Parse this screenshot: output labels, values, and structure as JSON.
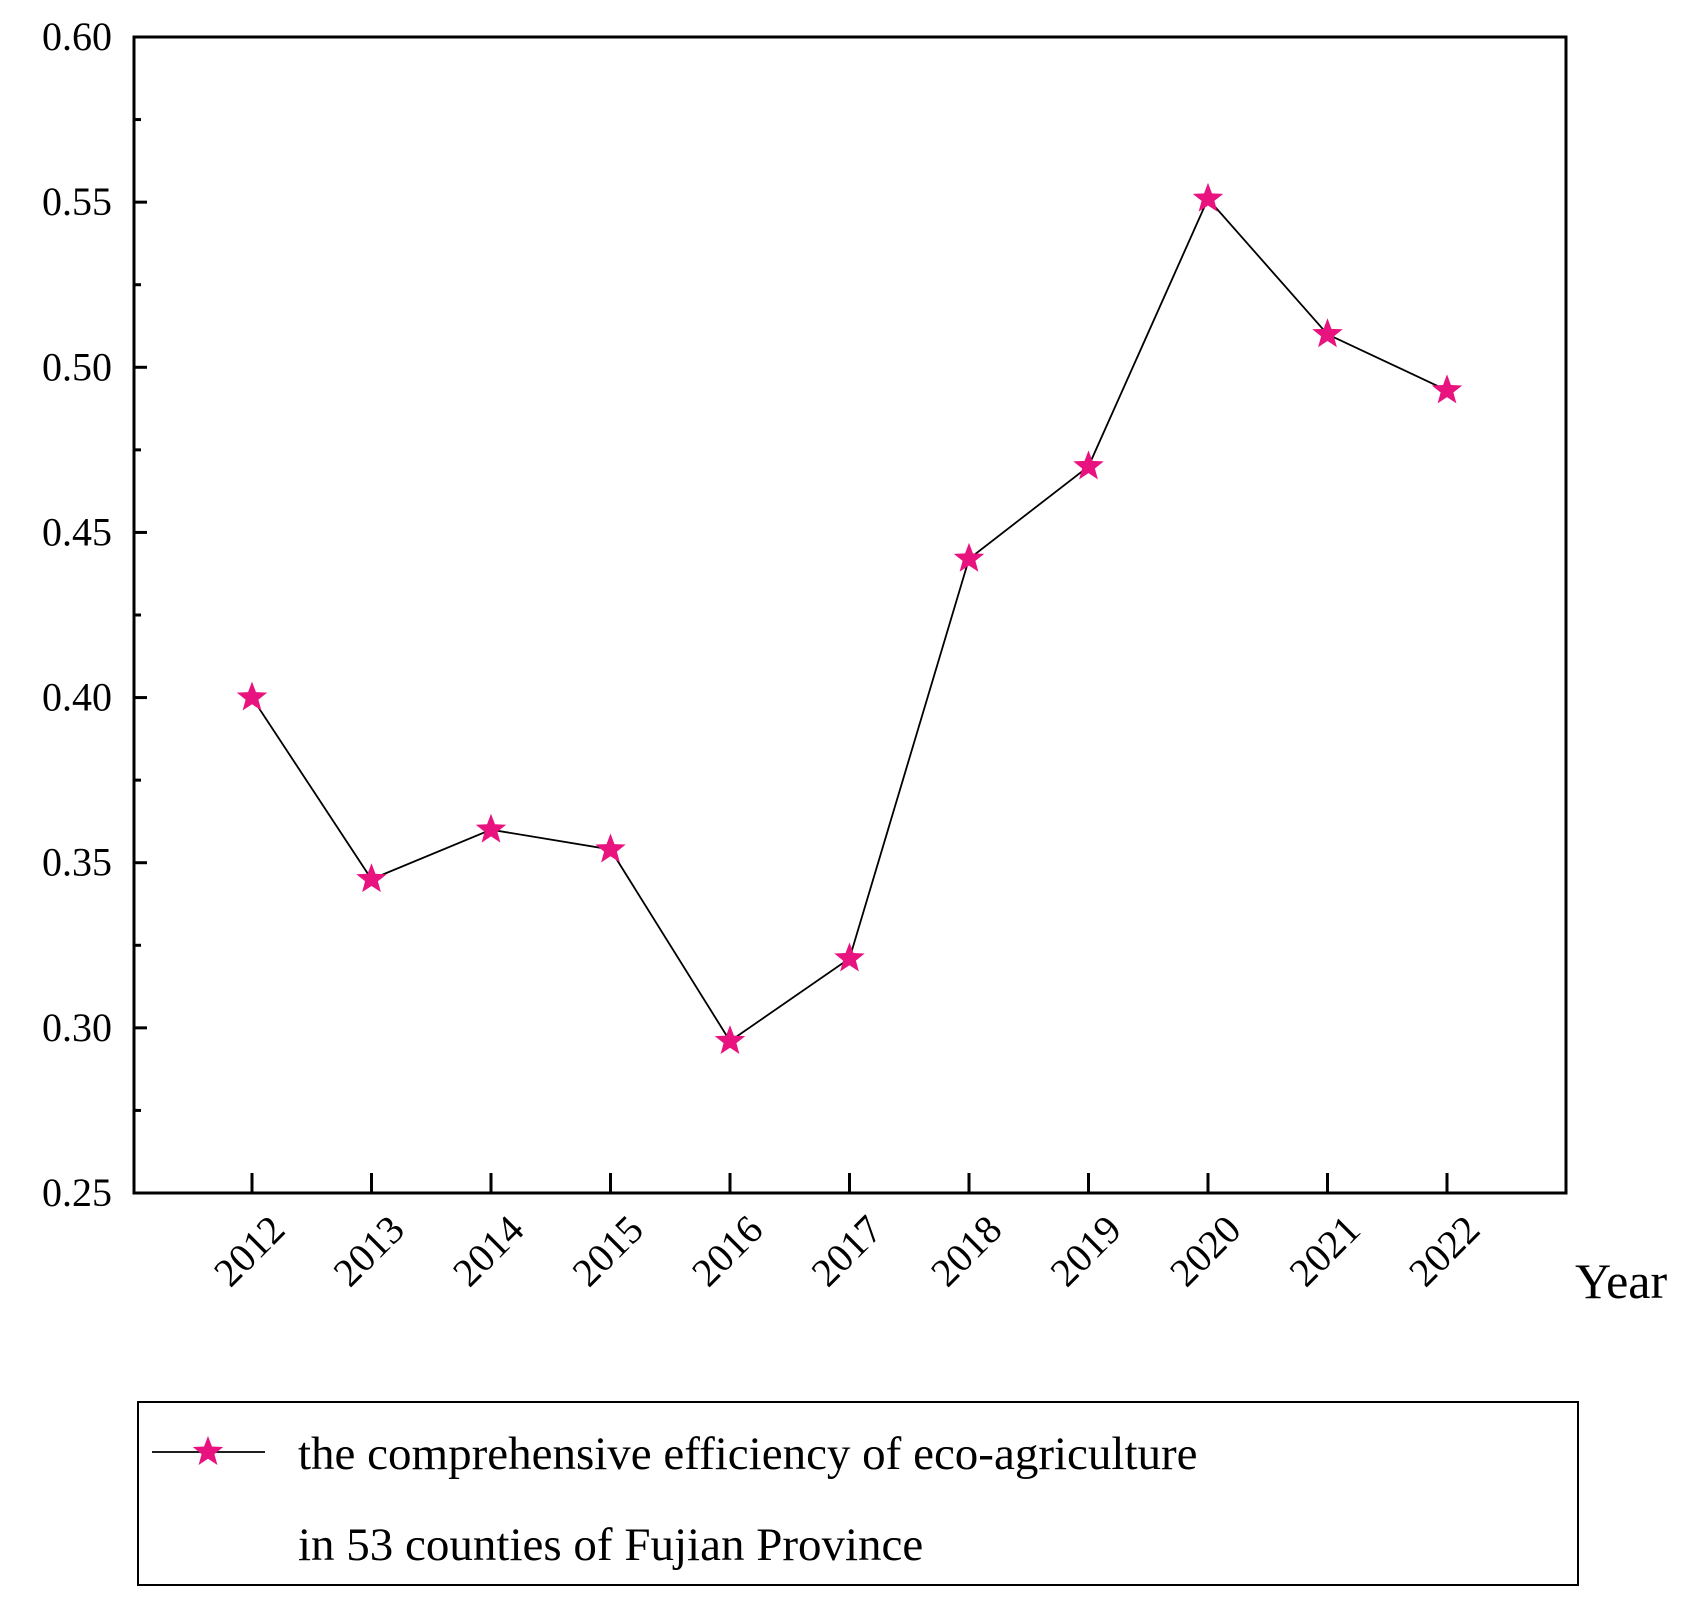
{
  "chart_data": {
    "type": "line",
    "title": "",
    "xlabel": "Year",
    "ylabel": "",
    "categories": [
      "2012",
      "2013",
      "2014",
      "2015",
      "2016",
      "2017",
      "2018",
      "2019",
      "2020",
      "2021",
      "2022"
    ],
    "series": [
      {
        "name": "the comprehensive efficiency of eco-agriculture in 53 counties of Fujian Province",
        "values": [
          0.4,
          0.345,
          0.36,
          0.354,
          0.296,
          0.321,
          0.442,
          0.47,
          0.551,
          0.51,
          0.493
        ]
      }
    ],
    "ylim": [
      0.25,
      0.6
    ],
    "yticks": [
      "0.25",
      "0.30",
      "0.35",
      "0.40",
      "0.45",
      "0.50",
      "0.55",
      "0.60"
    ],
    "grid": false,
    "legend_position": "bottom",
    "legend_lines": [
      "the comprehensive efficiency of eco-agriculture",
      "in 53 counties of Fujian Province"
    ]
  },
  "colors": {
    "marker": "#e8137f",
    "line": "#000000",
    "axis": "#000000"
  }
}
